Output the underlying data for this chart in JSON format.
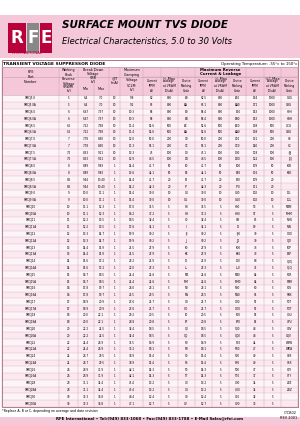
{
  "title1": "SURFACE MOUNT TVS DIODE",
  "title2": "Electrical Characteristics, 5.0 to 30 Volts",
  "table_title": "TRANSIENT VOLTAGE SUPPRESSOR DIODE",
  "op_temp": "Operating Temperature: -55°c to 150°c",
  "rows": [
    [
      "SMCJ5.0",
      "5",
      "6.4",
      "7.0",
      "10",
      "9.8",
      "62",
      "800",
      "A0",
      "62.5",
      "800",
      "A00",
      "164",
      "1000",
      "G0G"
    ],
    [
      "SMCJ5.0A",
      "5",
      "6.4",
      "7.0",
      "10",
      "9.2",
      "65",
      "800",
      "AA",
      "65.1",
      "800",
      "AA0",
      "171",
      "1000",
      "GBG"
    ],
    [
      "SMCJ6.0",
      "6",
      "6.67",
      "7.37",
      "10",
      "10.3",
      "58",
      "800",
      "B0",
      "58.4",
      "800",
      "B00",
      "153",
      "1000",
      "H0H"
    ],
    [
      "SMCJ6.0A",
      "6",
      "6.67",
      "7.37",
      "10",
      "10.3",
      "58",
      "800",
      "BB",
      "58.4",
      "800",
      "BB0",
      "153",
      "1000",
      "HBH"
    ],
    [
      "SMCJ6.5",
      "6.5",
      "7.22",
      "7.98",
      "10",
      "11.4",
      "52.6",
      "500",
      "AC",
      "52.6",
      "500",
      "AC0",
      "138",
      "500",
      "GCG"
    ],
    [
      "SMCJ6.5A",
      "6.5",
      "7.22",
      "7.98",
      "10",
      "11.4",
      "52.6",
      "500",
      "AA",
      "52.6",
      "500",
      "AA0",
      "138",
      "500",
      "GBG"
    ],
    [
      "SMCJ7.0",
      "7",
      "7.78",
      "8.60",
      "10",
      "12.0",
      "50.0",
      "200",
      "C0",
      "50.0",
      "200",
      "C00",
      "131",
      "200",
      "I0I"
    ],
    [
      "SMCJ7.0A",
      "7",
      "7.78",
      "8.60",
      "10",
      "11.3",
      "53.1",
      "200",
      "CC",
      "53.1",
      "200",
      "CC0",
      "140",
      "200",
      "ICI"
    ],
    [
      "SMCJ7.5",
      "7.5",
      "8.33",
      "9.21",
      "10",
      "13.3",
      "45",
      "100",
      "D0",
      "45.1",
      "100",
      "D00",
      "118",
      "100",
      "J0J"
    ],
    [
      "SMCJ7.5A",
      "7.5",
      "8.33",
      "9.21",
      "10",
      "12.9",
      "46.5",
      "100",
      "DD",
      "46.5",
      "100",
      "DD0",
      "122",
      "100",
      "JDJ"
    ],
    [
      "SMCJ8.0",
      "8",
      "8.89",
      "9.83",
      "1",
      "14.4",
      "41.7",
      "50",
      "E0",
      "41.7",
      "50",
      "E00",
      "109",
      "50",
      "K0K"
    ],
    [
      "SMCJ8.0A",
      "8",
      "8.89",
      "9.83",
      "1",
      "13.6",
      "44.1",
      "50",
      "EE",
      "44.1",
      "50",
      "EE0",
      "116",
      "50",
      "KEK"
    ],
    [
      "SMCJ8.5",
      "8.5",
      "9.44",
      "10.40",
      "1",
      "14.4",
      "41.7",
      "20",
      "F0",
      "41.7",
      "20",
      "F00",
      "109",
      "20",
      ""
    ],
    [
      "SMCJ8.5A",
      "8.5",
      "9.44",
      "10.40",
      "1",
      "14.2",
      "42.3",
      "20",
      "FF",
      "42.3",
      "20",
      "FF0",
      "111",
      "20",
      ""
    ],
    [
      "SMCJ9.0",
      "9",
      "10.0",
      "11.1",
      "1",
      "15.4",
      "39.0",
      "10",
      "G0",
      "39.0",
      "10",
      "G00",
      "102",
      "10",
      "L0L"
    ],
    [
      "SMCJ9.0A",
      "9",
      "10.0",
      "11.1",
      "1",
      "15.4",
      "39.0",
      "10",
      "GG",
      "39.0",
      "10",
      "GG0",
      "102",
      "10",
      "LGL"
    ],
    [
      "SMCJ10",
      "10",
      "11.1",
      "12.3",
      "1",
      "17.0",
      "35.5",
      "5",
      "H0",
      "35.5",
      "5",
      "H00",
      "93",
      "5",
      "M0M"
    ],
    [
      "SMCJ10A",
      "10",
      "11.1",
      "12.3",
      "1",
      "16.2",
      "37.2",
      "5",
      "HH",
      "37.2",
      "5",
      "HH0",
      "97",
      "5",
      "MHM"
    ],
    [
      "SMCJ11",
      "11",
      "12.2",
      "13.5",
      "1",
      "18.5",
      "32.4",
      "5",
      "I0",
      "32.4",
      "5",
      "I00",
      "85",
      "5",
      "N0N"
    ],
    [
      "SMCJ11A",
      "11",
      "12.2",
      "13.5",
      "1",
      "17.6",
      "34.1",
      "5",
      "II",
      "34.1",
      "5",
      "II0",
      "89",
      "5",
      "NIN"
    ],
    [
      "SMCJ12",
      "12",
      "13.3",
      "14.7",
      "1",
      "19.9",
      "30.2",
      "5",
      "J0",
      "30.2",
      "5",
      "J00",
      "79",
      "5",
      "O0O"
    ],
    [
      "SMCJ12A",
      "12",
      "13.3",
      "14.7",
      "1",
      "19.9",
      "30.2",
      "5",
      "JJ",
      "30.2",
      "5",
      "JJ0",
      "79",
      "5",
      "OJO"
    ],
    [
      "SMCJ13",
      "13",
      "14.4",
      "15.9",
      "1",
      "21.5",
      "27.9",
      "5",
      "K0",
      "27.9",
      "5",
      "K00",
      "73",
      "5",
      "P0P"
    ],
    [
      "SMCJ13A",
      "13",
      "14.4",
      "15.9",
      "1",
      "21.5",
      "27.9",
      "5",
      "KK",
      "27.9",
      "5",
      "KK0",
      "73",
      "5",
      "PKP"
    ],
    [
      "SMCJ14",
      "14",
      "15.6",
      "17.2",
      "1",
      "23.2",
      "25.9",
      "5",
      "L0",
      "25.9",
      "5",
      "L00",
      "68",
      "5",
      "Q0Q"
    ],
    [
      "SMCJ14A",
      "14",
      "15.6",
      "17.2",
      "1",
      "22.0",
      "27.3",
      "5",
      "LL",
      "27.3",
      "5",
      "LL0",
      "71",
      "5",
      "QLQ"
    ],
    [
      "SMCJ15",
      "15",
      "16.7",
      "18.5",
      "1",
      "24.4",
      "24.6",
      "5",
      "M0",
      "24.6",
      "5",
      "M00",
      "64",
      "5",
      "R0R"
    ],
    [
      "SMCJ15A",
      "15",
      "16.7",
      "18.5",
      "1",
      "24.4",
      "24.6",
      "5",
      "MM",
      "24.6",
      "5",
      "MM0",
      "64",
      "5",
      "RMR"
    ],
    [
      "SMCJ16",
      "16",
      "17.8",
      "19.7",
      "1",
      "26.0",
      "23.1",
      "5",
      "N0",
      "23.1",
      "5",
      "N00",
      "60",
      "5",
      "S0S"
    ],
    [
      "SMCJ16A",
      "16",
      "17.8",
      "19.7",
      "1",
      "25.5",
      "23.5",
      "5",
      "NN",
      "23.5",
      "5",
      "NN0",
      "61",
      "5",
      "SNS"
    ],
    [
      "SMCJ17",
      "17",
      "18.9",
      "20.9",
      "1",
      "27.6",
      "21.7",
      "5",
      "O0",
      "21.7",
      "5",
      "O00",
      "57",
      "5",
      "T0T"
    ],
    [
      "SMCJ17A",
      "17",
      "18.9",
      "20.9",
      "1",
      "27.6",
      "21.7",
      "5",
      "OO",
      "21.7",
      "5",
      "OO0",
      "57",
      "5",
      "TOT"
    ],
    [
      "SMCJ18",
      "18",
      "20.0",
      "22.1",
      "1",
      "29.2",
      "20.5",
      "5",
      "P0",
      "20.5",
      "5",
      "P00",
      "53",
      "5",
      "U0U"
    ],
    [
      "SMCJ18A",
      "18",
      "20.0",
      "22.1",
      "1",
      "28.8",
      "20.8",
      "5",
      "PP",
      "20.8",
      "5",
      "PP0",
      "54",
      "5",
      "UPU"
    ],
    [
      "SMCJ20",
      "20",
      "22.2",
      "24.5",
      "1",
      "32.4",
      "18.5",
      "5",
      "Q0",
      "18.5",
      "5",
      "Q00",
      "48",
      "5",
      "V0V"
    ],
    [
      "SMCJ20A",
      "20",
      "22.2",
      "24.5",
      "1",
      "32.4",
      "18.5",
      "5",
      "QQ",
      "18.5",
      "5",
      "QQ0",
      "48",
      "5",
      "VQV"
    ],
    [
      "SMCJ22",
      "22",
      "24.4",
      "26.9",
      "1",
      "35.5",
      "16.9",
      "5",
      "R0",
      "16.9",
      "5",
      "R00",
      "44",
      "5",
      "W0W"
    ],
    [
      "SMCJ22A",
      "22",
      "24.4",
      "26.9",
      "1",
      "33.2",
      "18.1",
      "5",
      "RR",
      "18.1",
      "5",
      "RR0",
      "47",
      "5",
      "WRW"
    ],
    [
      "SMCJ24",
      "24",
      "26.7",
      "29.5",
      "1",
      "38.9",
      "15.4",
      "5",
      "S0",
      "15.4",
      "5",
      "S00",
      "40",
      "5",
      "X0X"
    ],
    [
      "SMCJ24A",
      "24",
      "26.7",
      "29.5",
      "1",
      "38.9",
      "15.4",
      "5",
      "SS",
      "15.4",
      "5",
      "SS0",
      "40",
      "5",
      "XSX"
    ],
    [
      "SMCJ26",
      "26",
      "28.9",
      "31.9",
      "1",
      "42.1",
      "14.3",
      "5",
      "T0",
      "14.3",
      "5",
      "T00",
      "37",
      "5",
      "Y0Y"
    ],
    [
      "SMCJ26A",
      "26",
      "28.9",
      "31.9",
      "1",
      "42.1",
      "14.3",
      "5",
      "TT",
      "14.3",
      "5",
      "TT0",
      "37",
      "5",
      "YTY"
    ],
    [
      "SMCJ28",
      "28",
      "31.1",
      "34.4",
      "1",
      "45.4",
      "13.2",
      "5",
      "U0",
      "13.2",
      "5",
      "U00",
      "34",
      "5",
      "Z0Z"
    ],
    [
      "SMCJ28A",
      "28",
      "31.1",
      "34.4",
      "1",
      "45.4",
      "13.2",
      "5",
      "UU",
      "13.2",
      "5",
      "UU0",
      "34",
      "5",
      "ZUZ"
    ],
    [
      "SMCJ30",
      "30",
      "33.3",
      "36.8",
      "1",
      "48.4",
      "12.4",
      "5",
      "V0",
      "12.4",
      "5",
      "V00",
      "32",
      "5",
      ""
    ],
    [
      "SMCJ30A",
      "30",
      "33.3",
      "36.8",
      "1",
      "47.1",
      "12.7",
      "5",
      "VV",
      "12.7",
      "5",
      "VV0",
      "33",
      "5",
      ""
    ]
  ],
  "footer1": "*Replace A, B or C, depending on average and date revision",
  "footer2": "RFE International • Tel:(949) 833-1068 • Fax:(949) 833-1788 • E-Mail Sales@rfei.com",
  "footer3": "C/CB02\nREV 2001",
  "page_bg": "#ffffff",
  "header_strip_color": "#f4c8d8",
  "logo_red": "#b8003a",
  "logo_gray": "#888888",
  "table_header_bg": "#f4c8d8",
  "row_even_bg": "#fdf4f7",
  "row_odd_bg": "#fce8f0",
  "grid_color": "#c8a0b0",
  "text_color": "#000000",
  "col_widths_raw": [
    30,
    10,
    8,
    8,
    6,
    12,
    9,
    9,
    9,
    9,
    9,
    9,
    9,
    9,
    9
  ]
}
